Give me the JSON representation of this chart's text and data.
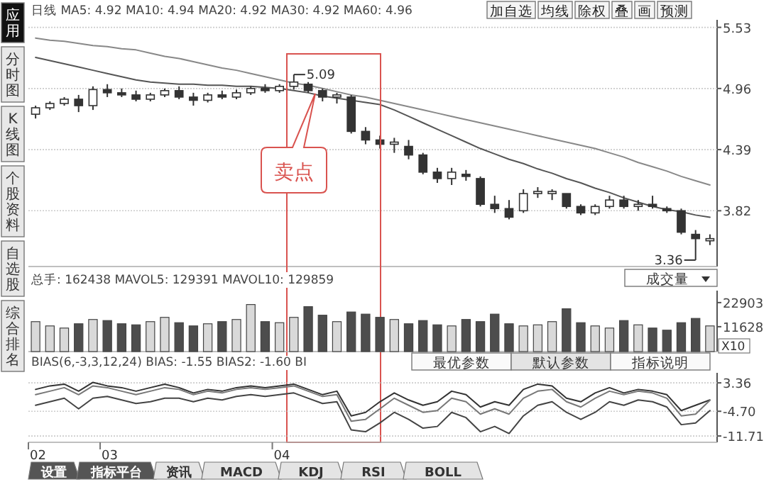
{
  "chart_data": [
    {
      "type": "candlestick",
      "title": "日线 MA5: 4.92 MA10: 4.94 MA20: 4.92 MA30: 4.92 MA60: 4.96",
      "categories": [
        null,
        null,
        null,
        null,
        null,
        null,
        null,
        null,
        null,
        null,
        null,
        null,
        null,
        null,
        null,
        null,
        null,
        null,
        null,
        null,
        null,
        null,
        null,
        null,
        null,
        null,
        null,
        null,
        null,
        null,
        null,
        null,
        null,
        null,
        null,
        null,
        null,
        null,
        null,
        null,
        null,
        null,
        null,
        null,
        null,
        null,
        null,
        null
      ],
      "ohlc": [
        [
          4.72,
          4.8,
          4.68,
          4.78
        ],
        [
          4.78,
          4.84,
          4.76,
          4.82
        ],
        [
          4.82,
          4.88,
          4.8,
          4.86
        ],
        [
          4.86,
          4.9,
          4.74,
          4.8
        ],
        [
          4.8,
          4.98,
          4.76,
          4.95
        ],
        [
          4.95,
          5.0,
          4.88,
          4.92
        ],
        [
          4.92,
          4.96,
          4.88,
          4.9
        ],
        [
          4.9,
          4.94,
          4.84,
          4.86
        ],
        [
          4.86,
          4.92,
          4.84,
          4.9
        ],
        [
          4.9,
          4.96,
          4.88,
          4.94
        ],
        [
          4.94,
          4.98,
          4.86,
          4.88
        ],
        [
          4.88,
          4.92,
          4.8,
          4.85
        ],
        [
          4.85,
          4.92,
          4.83,
          4.9
        ],
        [
          4.9,
          4.94,
          4.86,
          4.88
        ],
        [
          4.88,
          4.95,
          4.86,
          4.92
        ],
        [
          4.92,
          4.98,
          4.9,
          4.96
        ],
        [
          4.96,
          5.0,
          4.92,
          4.94
        ],
        [
          4.94,
          5.0,
          4.92,
          4.98
        ],
        [
          4.98,
          5.09,
          4.95,
          5.02
        ],
        [
          5.0,
          5.02,
          4.92,
          4.94
        ],
        [
          4.94,
          4.96,
          4.84,
          4.88
        ],
        [
          4.88,
          4.92,
          4.82,
          4.9
        ],
        [
          4.88,
          4.9,
          4.54,
          4.56
        ],
        [
          4.56,
          4.6,
          4.44,
          4.48
        ],
        [
          4.48,
          4.52,
          4.4,
          4.44
        ],
        [
          4.44,
          4.5,
          4.36,
          4.46
        ],
        [
          4.42,
          4.48,
          4.3,
          4.34
        ],
        [
          4.34,
          4.36,
          4.16,
          4.18
        ],
        [
          4.18,
          4.22,
          4.08,
          4.12
        ],
        [
          4.12,
          4.22,
          4.06,
          4.18
        ],
        [
          4.16,
          4.2,
          4.1,
          4.14
        ],
        [
          4.12,
          4.14,
          3.86,
          3.88
        ],
        [
          3.88,
          3.96,
          3.8,
          3.84
        ],
        [
          3.84,
          3.92,
          3.74,
          3.76
        ],
        [
          3.82,
          4.02,
          3.8,
          3.98
        ],
        [
          3.98,
          4.04,
          3.94,
          4.0
        ],
        [
          3.98,
          4.02,
          3.92,
          4.0
        ],
        [
          3.98,
          3.98,
          3.84,
          3.86
        ],
        [
          3.86,
          3.88,
          3.78,
          3.8
        ],
        [
          3.8,
          3.88,
          3.78,
          3.86
        ],
        [
          3.86,
          3.96,
          3.84,
          3.92
        ],
        [
          3.92,
          3.96,
          3.84,
          3.86
        ],
        [
          3.86,
          3.92,
          3.82,
          3.88
        ],
        [
          3.88,
          3.96,
          3.84,
          3.86
        ],
        [
          3.84,
          3.86,
          3.8,
          3.82
        ],
        [
          3.82,
          3.84,
          3.6,
          3.62
        ],
        [
          3.6,
          3.64,
          3.36,
          3.56
        ],
        [
          3.54,
          3.6,
          3.5,
          3.56
        ]
      ],
      "series": [
        {
          "type": "line",
          "color": "#555555",
          "values": [
            5.25,
            5.22,
            5.19,
            5.16,
            5.13,
            5.1,
            5.07,
            5.04,
            5.02,
            5.01,
            5.0,
            5.0,
            4.99,
            4.99,
            4.98,
            4.98,
            4.97,
            4.96,
            4.94,
            4.92,
            4.89,
            4.87,
            4.85,
            4.83,
            4.81,
            4.76,
            4.7,
            4.64,
            4.58,
            4.52,
            4.46,
            4.4,
            4.35,
            4.3,
            4.26,
            4.21,
            4.17,
            4.12,
            4.08,
            4.03,
            3.99,
            3.94,
            3.9,
            3.86,
            3.83,
            3.81,
            3.78,
            3.76
          ]
        },
        {
          "type": "line",
          "color": "#888888",
          "values": [
            5.43,
            5.41,
            5.4,
            5.38,
            5.36,
            5.35,
            5.33,
            5.32,
            5.29,
            5.26,
            5.24,
            5.21,
            5.18,
            5.15,
            5.13,
            5.1,
            5.07,
            5.04,
            5.01,
            4.99,
            4.96,
            4.93,
            4.9,
            4.88,
            4.85,
            4.82,
            4.79,
            4.76,
            4.73,
            4.7,
            4.67,
            4.64,
            4.61,
            4.58,
            4.55,
            4.52,
            4.49,
            4.46,
            4.43,
            4.4,
            4.36,
            4.32,
            4.27,
            4.23,
            4.19,
            4.14,
            4.1,
            4.06
          ]
        }
      ],
      "ylim": [
        3.3,
        5.6
      ],
      "yticks": [
        5.53,
        4.96,
        4.39,
        3.82
      ],
      "grid": "y",
      "tick_labels": "y",
      "annotations": [
        "5.09",
        "3.36",
        "卖点",
        "加自选",
        "均线",
        "除权",
        "叠",
        "画",
        "预测",
        "应用",
        "分时图",
        "K线图",
        "个股资料",
        "自选股",
        "综合排名"
      ]
    },
    {
      "type": "bar",
      "title": "总手: 162438 MAVOL5: 129391 MAVOL10: 129859",
      "categories": [
        null,
        null,
        null,
        null,
        null,
        null,
        null,
        null,
        null,
        null,
        null,
        null,
        null,
        null,
        null,
        null,
        null,
        null,
        null,
        null,
        null,
        null,
        null,
        null,
        null,
        null,
        null,
        null,
        null,
        null,
        null,
        null,
        null,
        null,
        null,
        null,
        null,
        null,
        null,
        null,
        null,
        null,
        null,
        null,
        null,
        null,
        null,
        null
      ],
      "values": [
        14000,
        12000,
        11000,
        13000,
        15000,
        14500,
        13000,
        12500,
        14000,
        16000,
        13500,
        12000,
        13000,
        14000,
        15000,
        22000,
        14000,
        13500,
        16000,
        21000,
        17000,
        14000,
        18500,
        17500,
        16000,
        15000,
        13000,
        14500,
        12500,
        12000,
        15000,
        14000,
        17500,
        13000,
        12000,
        12500,
        14000,
        20000,
        13500,
        12000,
        11000,
        14500,
        12500,
        11000,
        10000,
        13500,
        15500,
        12000
      ],
      "colors": [
        "#d9d9d9",
        "#d9d9d9",
        "#d9d9d9",
        "#4d4d4d",
        "#d9d9d9",
        "#4d4d4d",
        "#4d4d4d",
        "#4d4d4d",
        "#d9d9d9",
        "#d9d9d9",
        "#4d4d4d",
        "#4d4d4d",
        "#d9d9d9",
        "#4d4d4d",
        "#d9d9d9",
        "#d9d9d9",
        "#4d4d4d",
        "#d9d9d9",
        "#d9d9d9",
        "#4d4d4d",
        "#4d4d4d",
        "#d9d9d9",
        "#4d4d4d",
        "#4d4d4d",
        "#4d4d4d",
        "#d9d9d9",
        "#4d4d4d",
        "#4d4d4d",
        "#4d4d4d",
        "#d9d9d9",
        "#4d4d4d",
        "#4d4d4d",
        "#4d4d4d",
        "#4d4d4d",
        "#d9d9d9",
        "#d9d9d9",
        "#d9d9d9",
        "#4d4d4d",
        "#4d4d4d",
        "#d9d9d9",
        "#d9d9d9",
        "#4d4d4d",
        "#d9d9d9",
        "#4d4d4d",
        "#4d4d4d",
        "#4d4d4d",
        "#4d4d4d",
        "#d9d9d9"
      ],
      "ylim": [
        0,
        28500
      ],
      "yticks": [
        22903,
        11628
      ],
      "tick_labels": "y",
      "annotations": [
        "X10",
        "成交量",
        "最优参数",
        "默认参数",
        "指标说明"
      ]
    },
    {
      "type": "line",
      "title": "BIAS(6,-3,3,12,24) BIAS: -1.55 BIAS2: -1.60 BI",
      "categories": [
        "02",
        null,
        null,
        null,
        null,
        "03",
        null,
        null,
        null,
        null,
        null,
        null,
        null,
        null,
        null,
        null,
        null,
        "04",
        null,
        null,
        null,
        null,
        null,
        null,
        null,
        null,
        null,
        null,
        null,
        null,
        null,
        null,
        null,
        null,
        null,
        null,
        null,
        null,
        null,
        null,
        null,
        null,
        null,
        null,
        null,
        null,
        null,
        null
      ],
      "series": [
        {
          "color": "#333333",
          "values": [
            1.5,
            2.5,
            3.0,
            1.0,
            3.5,
            2.5,
            2.0,
            1.0,
            2.0,
            3.0,
            2.0,
            0.5,
            1.5,
            1.0,
            2.0,
            2.5,
            2.0,
            2.5,
            3.0,
            1.5,
            0.0,
            1.0,
            -6.0,
            -5.0,
            -2.0,
            0.5,
            -1.5,
            -3.0,
            -2.0,
            1.0,
            0.0,
            -3.5,
            -2.0,
            -3.0,
            1.5,
            3.0,
            2.5,
            -1.0,
            -2.0,
            0.5,
            2.0,
            0.5,
            1.5,
            1.0,
            0.0,
            -4.5,
            -3.0,
            -1.5
          ]
        },
        {
          "color": "#777777",
          "values": [
            0.0,
            1.0,
            2.0,
            0.0,
            2.5,
            2.0,
            1.0,
            0.0,
            1.0,
            2.0,
            1.5,
            0.0,
            1.0,
            0.5,
            1.5,
            2.0,
            1.5,
            2.0,
            2.5,
            1.0,
            -0.5,
            0.0,
            -7.5,
            -7.0,
            -4.0,
            -1.0,
            -3.0,
            -5.0,
            -4.5,
            -1.0,
            -2.0,
            -5.5,
            -4.0,
            -5.5,
            -1.0,
            1.0,
            1.5,
            -2.0,
            -3.5,
            -1.0,
            1.0,
            0.0,
            1.0,
            0.5,
            -1.0,
            -6.0,
            -5.5,
            -1.6
          ]
        },
        {
          "color": "#444444",
          "values": [
            -3.0,
            -2.0,
            -1.0,
            -4.0,
            -1.0,
            -0.5,
            -1.5,
            -2.5,
            -2.0,
            -1.0,
            -1.0,
            -2.0,
            -1.0,
            -1.5,
            -0.5,
            0.0,
            -0.5,
            0.0,
            0.5,
            -1.0,
            -2.5,
            -2.0,
            -10.0,
            -10.5,
            -8.0,
            -5.0,
            -7.0,
            -9.5,
            -9.0,
            -5.0,
            -6.5,
            -10.5,
            -9.0,
            -11.0,
            -6.0,
            -3.0,
            -2.0,
            -5.0,
            -7.0,
            -5.0,
            -2.0,
            -3.0,
            -1.5,
            -2.0,
            -3.5,
            -8.5,
            -8.0,
            -4.5
          ]
        }
      ],
      "ylim": [
        -13.5,
        6.2
      ],
      "yticks": [
        3.36,
        {
          "value": -4.7,
          "label": "-4.70"
        },
        -11.71
      ],
      "grid": "y",
      "annotations": [
        "设置",
        "指标平台",
        "资讯",
        "MACD",
        "KDJ",
        "RSI",
        "BOLL"
      ]
    }
  ]
}
